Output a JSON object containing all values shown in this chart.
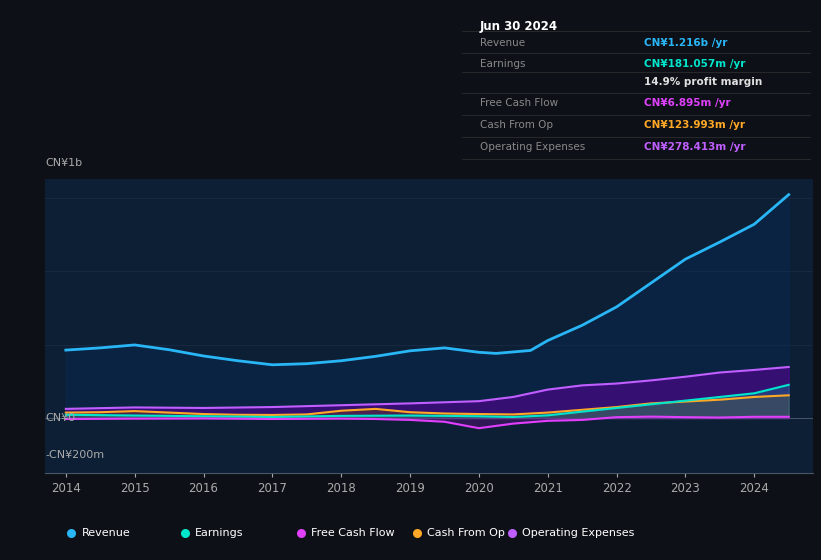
{
  "bg_color": "#0d1117",
  "plot_bg_color": "#0d1f35",
  "info_box_bg": "#000000",
  "title_date": "Jun 30 2024",
  "info_rows": [
    {
      "label": "Revenue",
      "value": "CN¥1.216b /yr",
      "vcolor": "#29b6f6"
    },
    {
      "label": "Earnings",
      "value": "CN¥181.057m /yr",
      "vcolor": "#00e5cc"
    },
    {
      "label": "",
      "value": "14.9% profit margin",
      "vcolor": "#e0e0e0"
    },
    {
      "label": "Free Cash Flow",
      "value": "CN¥6.895m /yr",
      "vcolor": "#e040fb"
    },
    {
      "label": "Cash From Op",
      "value": "CN¥123.993m /yr",
      "vcolor": "#ffa726"
    },
    {
      "label": "Operating Expenses",
      "value": "CN¥278.413m /yr",
      "vcolor": "#bf5fff"
    }
  ],
  "y_label_top": "CN¥1b",
  "y_label_zero": "CN¥0",
  "y_label_bottom": "-CN¥200m",
  "x_ticks": [
    2014,
    2015,
    2016,
    2017,
    2018,
    2019,
    2020,
    2021,
    2022,
    2023,
    2024
  ],
  "ylim_min": -300,
  "ylim_max": 1300,
  "xlim_min": 2013.7,
  "xlim_max": 2024.85,
  "series": {
    "revenue": {
      "color": "#29b6f6",
      "fill_alpha": 0.45,
      "fill_color": "#0a2a55",
      "label": "Revenue",
      "x": [
        2014.0,
        2014.5,
        2015.0,
        2015.5,
        2016.0,
        2016.5,
        2017.0,
        2017.5,
        2018.0,
        2018.5,
        2019.0,
        2019.5,
        2020.0,
        2020.25,
        2020.75,
        2021.0,
        2021.5,
        2022.0,
        2022.5,
        2023.0,
        2023.5,
        2024.0,
        2024.5
      ],
      "y": [
        370,
        382,
        398,
        372,
        338,
        312,
        290,
        296,
        312,
        336,
        366,
        382,
        358,
        352,
        368,
        422,
        505,
        605,
        735,
        865,
        958,
        1055,
        1216
      ]
    },
    "earnings": {
      "color": "#00e5cc",
      "fill_alpha": 0.25,
      "fill_color": "#00c0a8",
      "label": "Earnings",
      "x": [
        2014.0,
        2015.0,
        2016.0,
        2017.0,
        2018.0,
        2019.0,
        2019.5,
        2020.0,
        2020.5,
        2021.0,
        2021.5,
        2022.0,
        2022.5,
        2023.0,
        2023.5,
        2024.0,
        2024.5
      ],
      "y": [
        18,
        14,
        10,
        6,
        12,
        14,
        12,
        10,
        6,
        15,
        35,
        55,
        75,
        95,
        115,
        135,
        181
      ]
    },
    "free_cash_flow": {
      "color": "#e040fb",
      "fill_alpha": 0.25,
      "fill_color": "#9900bb",
      "label": "Free Cash Flow",
      "x": [
        2014.0,
        2015.0,
        2016.0,
        2017.0,
        2018.0,
        2018.5,
        2019.0,
        2019.5,
        2020.0,
        2020.5,
        2021.0,
        2021.5,
        2022.0,
        2022.5,
        2023.0,
        2023.5,
        2024.0,
        2024.5
      ],
      "y": [
        -5,
        -3,
        -2,
        -5,
        -3,
        -5,
        -10,
        -20,
        -55,
        -30,
        -15,
        -10,
        5,
        8,
        5,
        3,
        7,
        7
      ]
    },
    "cash_from_op": {
      "color": "#ffa726",
      "fill_alpha": 0.3,
      "fill_color": "#7a5000",
      "label": "Cash From Op",
      "x": [
        2014.0,
        2014.5,
        2015.0,
        2015.5,
        2016.0,
        2016.5,
        2017.0,
        2017.5,
        2018.0,
        2018.5,
        2019.0,
        2019.5,
        2020.0,
        2020.5,
        2021.0,
        2021.5,
        2022.0,
        2022.5,
        2023.0,
        2023.5,
        2024.0,
        2024.5
      ],
      "y": [
        30,
        32,
        38,
        30,
        22,
        18,
        17,
        20,
        40,
        50,
        32,
        25,
        22,
        20,
        30,
        45,
        60,
        80,
        90,
        100,
        115,
        124
      ]
    },
    "operating_expenses": {
      "color": "#bf5fff",
      "fill_alpha": 0.55,
      "fill_color": "#5a0099",
      "label": "Operating Expenses",
      "x": [
        2014.0,
        2015.0,
        2016.0,
        2017.0,
        2018.0,
        2019.0,
        2020.0,
        2020.5,
        2021.0,
        2021.5,
        2022.0,
        2022.5,
        2023.0,
        2023.5,
        2024.0,
        2024.5
      ],
      "y": [
        50,
        58,
        55,
        60,
        70,
        80,
        92,
        115,
        155,
        178,
        188,
        205,
        225,
        248,
        262,
        278
      ]
    }
  },
  "legend": [
    {
      "label": "Revenue",
      "color": "#29b6f6"
    },
    {
      "label": "Earnings",
      "color": "#00e5cc"
    },
    {
      "label": "Free Cash Flow",
      "color": "#e040fb"
    },
    {
      "label": "Cash From Op",
      "color": "#ffa726"
    },
    {
      "label": "Operating Expenses",
      "color": "#bf5fff"
    }
  ]
}
